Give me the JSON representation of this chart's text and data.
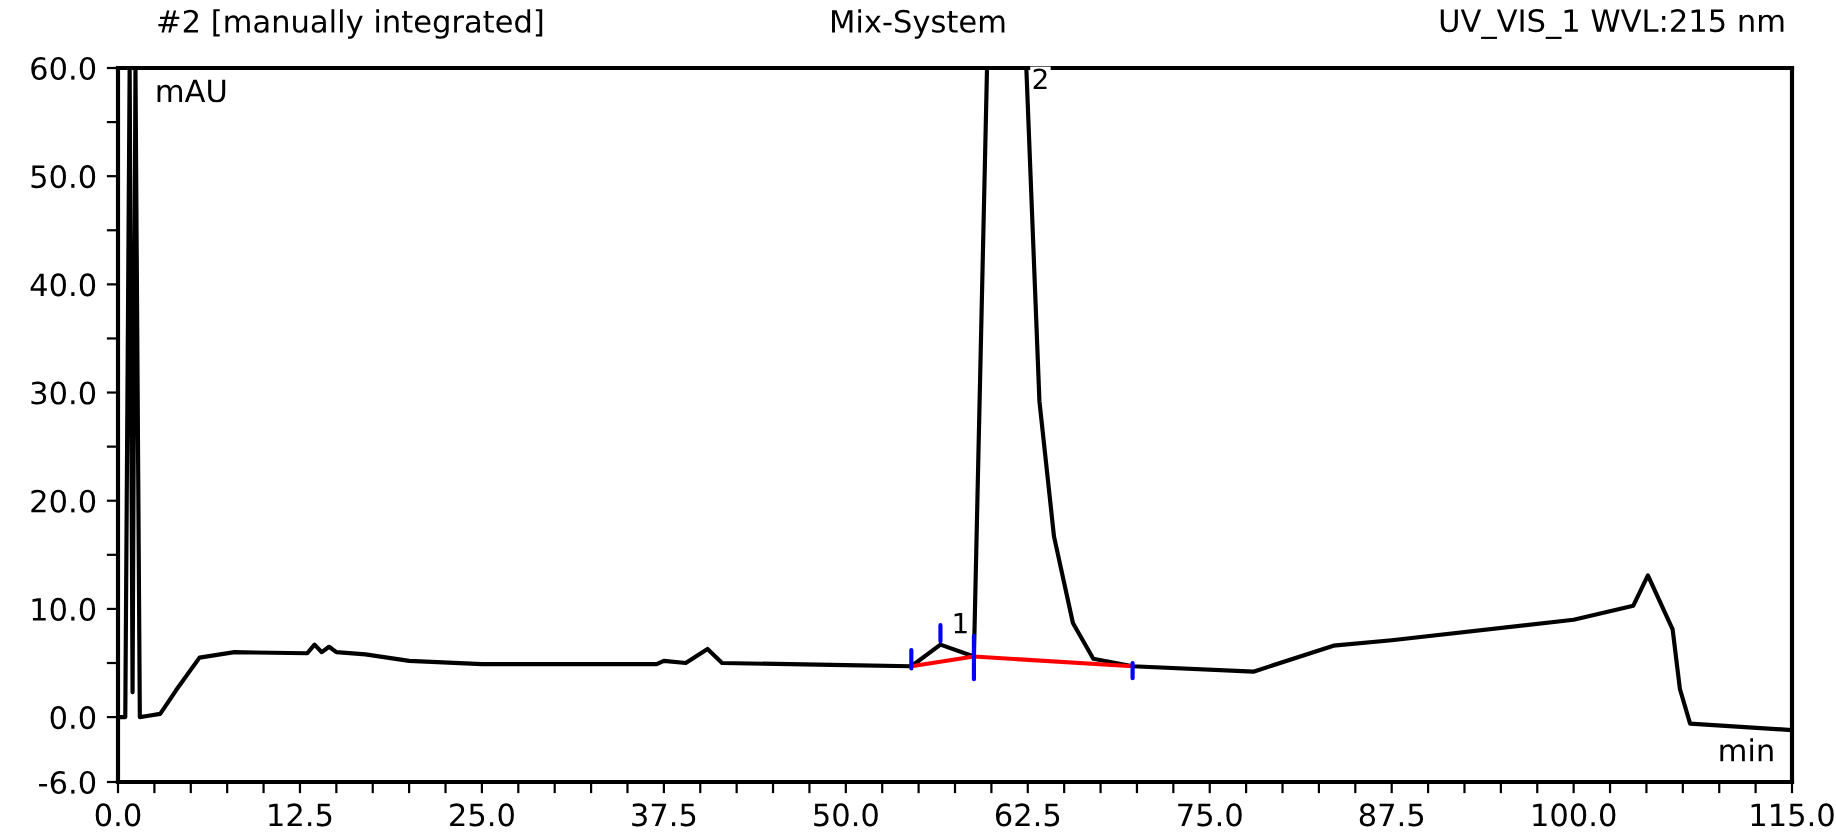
{
  "chart_data": {
    "type": "line",
    "title": "Mix-System",
    "xlabel": "min",
    "ylabel": "mAU",
    "annotations": [
      "#2 [manually integrated]",
      "UV_VIS_1 WVL:215 nm",
      {
        "text": "1",
        "x": 56.5,
        "y": 6.7
      },
      {
        "text": "2",
        "x": 62.0,
        "y": 57
      }
    ],
    "series": [
      {
        "color": "#000000",
        "x": [
          0,
          0.5,
          0.8,
          1.0,
          1.2,
          1.5,
          2.0,
          2.9,
          4.0,
          5.6,
          8.0,
          13.0,
          13.5,
          14.0,
          14.5,
          15.0,
          17.0,
          20.0,
          25.0,
          37.0,
          37.5,
          39.0,
          40.5,
          41.5,
          50.0,
          54.5,
          56.5,
          58.8,
          59.7,
          60.2,
          62.4,
          63.3,
          64.3,
          65.6,
          67.0,
          69.7,
          78.0,
          83.5,
          87.5,
          100.0,
          104.1,
          105.1,
          106.8,
          107.3,
          108.0,
          115.0
        ],
        "values": [
          0,
          0,
          60,
          2.3,
          60,
          0,
          0.1,
          0.3,
          2.5,
          5.5,
          6.0,
          5.9,
          6.7,
          6.0,
          6.5,
          6.0,
          5.8,
          5.2,
          4.9,
          4.9,
          5.2,
          5.0,
          6.3,
          5.0,
          4.8,
          4.7,
          6.7,
          5.6,
          60,
          60,
          60,
          29.2,
          16.7,
          8.7,
          5.4,
          4.7,
          4.2,
          6.6,
          7.1,
          9.0,
          10.3,
          13.1,
          8.1,
          2.6,
          -0.6,
          -1.2
        ]
      },
      {
        "color": "#ff0000",
        "x": [
          54.5,
          58.8,
          69.7
        ],
        "values": [
          4.7,
          5.6,
          4.7
        ]
      },
      {
        "color": "#0000ff",
        "x": [
          54.5,
          54.5,
          null,
          56.5,
          56.5,
          null,
          58.8,
          58.8,
          null,
          69.7,
          69.7
        ],
        "values": [
          4.5,
          6.2,
          null,
          7.0,
          8.5,
          null,
          3.5,
          7.5,
          null,
          3.6,
          5.0
        ]
      }
    ],
    "xlim": [
      0,
      115
    ],
    "ylim": [
      -6,
      60
    ],
    "xticks": [
      {
        "value": 0,
        "label": "0.0"
      },
      {
        "value": 2.5,
        "label": null
      },
      {
        "value": 5,
        "label": null
      },
      {
        "value": 7.5,
        "label": null
      },
      {
        "value": 10,
        "label": null
      },
      {
        "value": 12.5,
        "label": "12.5"
      },
      {
        "value": 15,
        "label": null
      },
      {
        "value": 17.5,
        "label": null
      },
      {
        "value": 20,
        "label": null
      },
      {
        "value": 22.5,
        "label": null
      },
      {
        "value": 25,
        "label": "25.0"
      },
      {
        "value": 27.5,
        "label": null
      },
      {
        "value": 30,
        "label": null
      },
      {
        "value": 32.5,
        "label": null
      },
      {
        "value": 35,
        "label": null
      },
      {
        "value": 37.5,
        "label": "37.5"
      },
      {
        "value": 40,
        "label": null
      },
      {
        "value": 42.5,
        "label": null
      },
      {
        "value": 45,
        "label": null
      },
      {
        "value": 47.5,
        "label": null
      },
      {
        "value": 50,
        "label": "50.0"
      },
      {
        "value": 52.5,
        "label": null
      },
      {
        "value": 55,
        "label": null
      },
      {
        "value": 57.5,
        "label": null
      },
      {
        "value": 60,
        "label": null
      },
      {
        "value": 62.5,
        "label": "62.5"
      },
      {
        "value": 65,
        "label": null
      },
      {
        "value": 67.5,
        "label": null
      },
      {
        "value": 70,
        "label": null
      },
      {
        "value": 72.5,
        "label": null
      },
      {
        "value": 75,
        "label": "75.0"
      },
      {
        "value": 77.5,
        "label": null
      },
      {
        "value": 80,
        "label": null
      },
      {
        "value": 82.5,
        "label": null
      },
      {
        "value": 85,
        "label": null
      },
      {
        "value": 87.5,
        "label": "87.5"
      },
      {
        "value": 90,
        "label": null
      },
      {
        "value": 92.5,
        "label": null
      },
      {
        "value": 95,
        "label": null
      },
      {
        "value": 97.5,
        "label": null
      },
      {
        "value": 100,
        "label": "100.0"
      },
      {
        "value": 102.5,
        "label": null
      },
      {
        "value": 105,
        "label": null
      },
      {
        "value": 107.5,
        "label": null
      },
      {
        "value": 110,
        "label": null
      },
      {
        "value": 112.5,
        "label": null
      },
      {
        "value": 115,
        "label": "115.0"
      }
    ],
    "yticks": [
      {
        "value": -6,
        "label": "-6.0"
      },
      {
        "value": 0,
        "label": "0.0"
      },
      {
        "value": 5,
        "label": null
      },
      {
        "value": 10,
        "label": "10.0"
      },
      {
        "value": 15,
        "label": null
      },
      {
        "value": 20,
        "label": "20.0"
      },
      {
        "value": 25,
        "label": null
      },
      {
        "value": 30,
        "label": "30.0"
      },
      {
        "value": 35,
        "label": null
      },
      {
        "value": 40,
        "label": "40.0"
      },
      {
        "value": 45,
        "label": null
      },
      {
        "value": 50,
        "label": "50.0"
      },
      {
        "value": 55,
        "label": null
      },
      {
        "value": 60,
        "label": "60.0"
      }
    ],
    "grid": false,
    "legend": false
  }
}
